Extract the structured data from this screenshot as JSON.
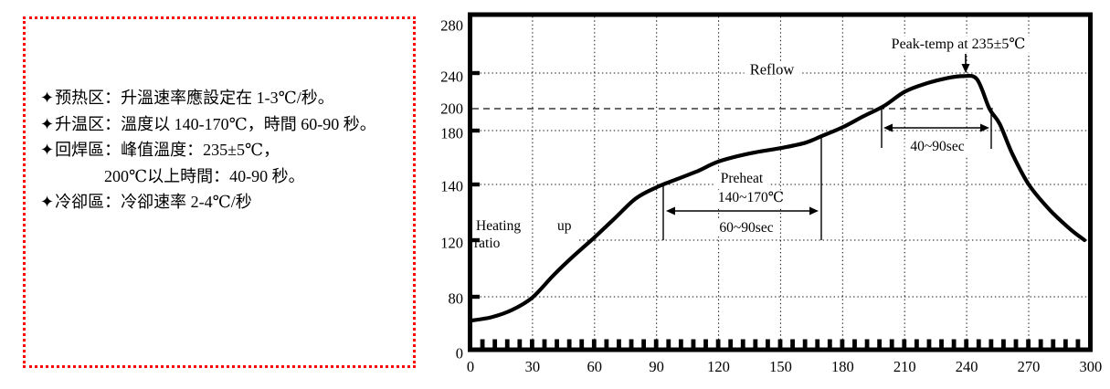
{
  "notes_panel": {
    "border_color": "#ff0000",
    "lines": [
      {
        "bullet": "✦",
        "text": "预热区：升溫速率應設定在 1-3℃/秒。"
      },
      {
        "bullet": "✦",
        "text": "升温区：溫度以 140-170℃，時間 60-90 秒。"
      },
      {
        "bullet": "✦",
        "text": "回焊區：峰值溫度：235±5℃，"
      },
      {
        "bullet": "",
        "text": "200℃以上時間：40-90 秒。"
      },
      {
        "bullet": "✦",
        "text": "冷卻區：冷卻速率 2-4℃/秒"
      }
    ]
  },
  "chart_data": {
    "type": "line",
    "title": "",
    "xlabel": "",
    "ylabel": "",
    "xlim": [
      0,
      300
    ],
    "ylim": [
      0,
      280
    ],
    "x_ticks": [
      0,
      30,
      60,
      90,
      120,
      150,
      180,
      210,
      240,
      270,
      300
    ],
    "y_ticks": [
      280,
      240,
      200,
      180,
      140,
      120,
      80,
      0
    ],
    "grid": "dotted",
    "reference_dashed_line_y": 200,
    "series": [
      {
        "name": "reflow-temperature-profile",
        "points": [
          [
            0,
            44
          ],
          [
            10,
            49
          ],
          [
            20,
            60
          ],
          [
            30,
            79
          ],
          [
            40,
            95
          ],
          [
            50,
            109
          ],
          [
            60,
            121
          ],
          [
            70,
            128
          ],
          [
            80,
            135
          ],
          [
            90,
            139
          ],
          [
            100,
            144
          ],
          [
            110,
            150
          ],
          [
            120,
            157
          ],
          [
            135,
            163
          ],
          [
            150,
            167
          ],
          [
            162,
            171
          ],
          [
            170,
            176
          ],
          [
            180,
            183
          ],
          [
            190,
            193
          ],
          [
            200,
            203
          ],
          [
            210,
            219
          ],
          [
            220,
            228
          ],
          [
            230,
            234
          ],
          [
            238,
            236.5
          ],
          [
            245,
            233
          ],
          [
            251,
            200
          ],
          [
            256,
            186
          ],
          [
            262,
            163
          ],
          [
            270,
            140
          ],
          [
            280,
            131
          ],
          [
            290,
            124
          ],
          [
            297,
            120
          ]
        ]
      }
    ],
    "annotations": {
      "heating_word1": "Heating",
      "heating_word2": "up",
      "heating_word3": "ratio",
      "reflow_label": "Reflow",
      "peak_label": "Peak-temp at 235±5℃",
      "preheat_title": "Preheat",
      "preheat_temp_range": "140~170℃",
      "preheat_time_range": "60~90sec",
      "above200_time_range": "40~90sec"
    }
  }
}
